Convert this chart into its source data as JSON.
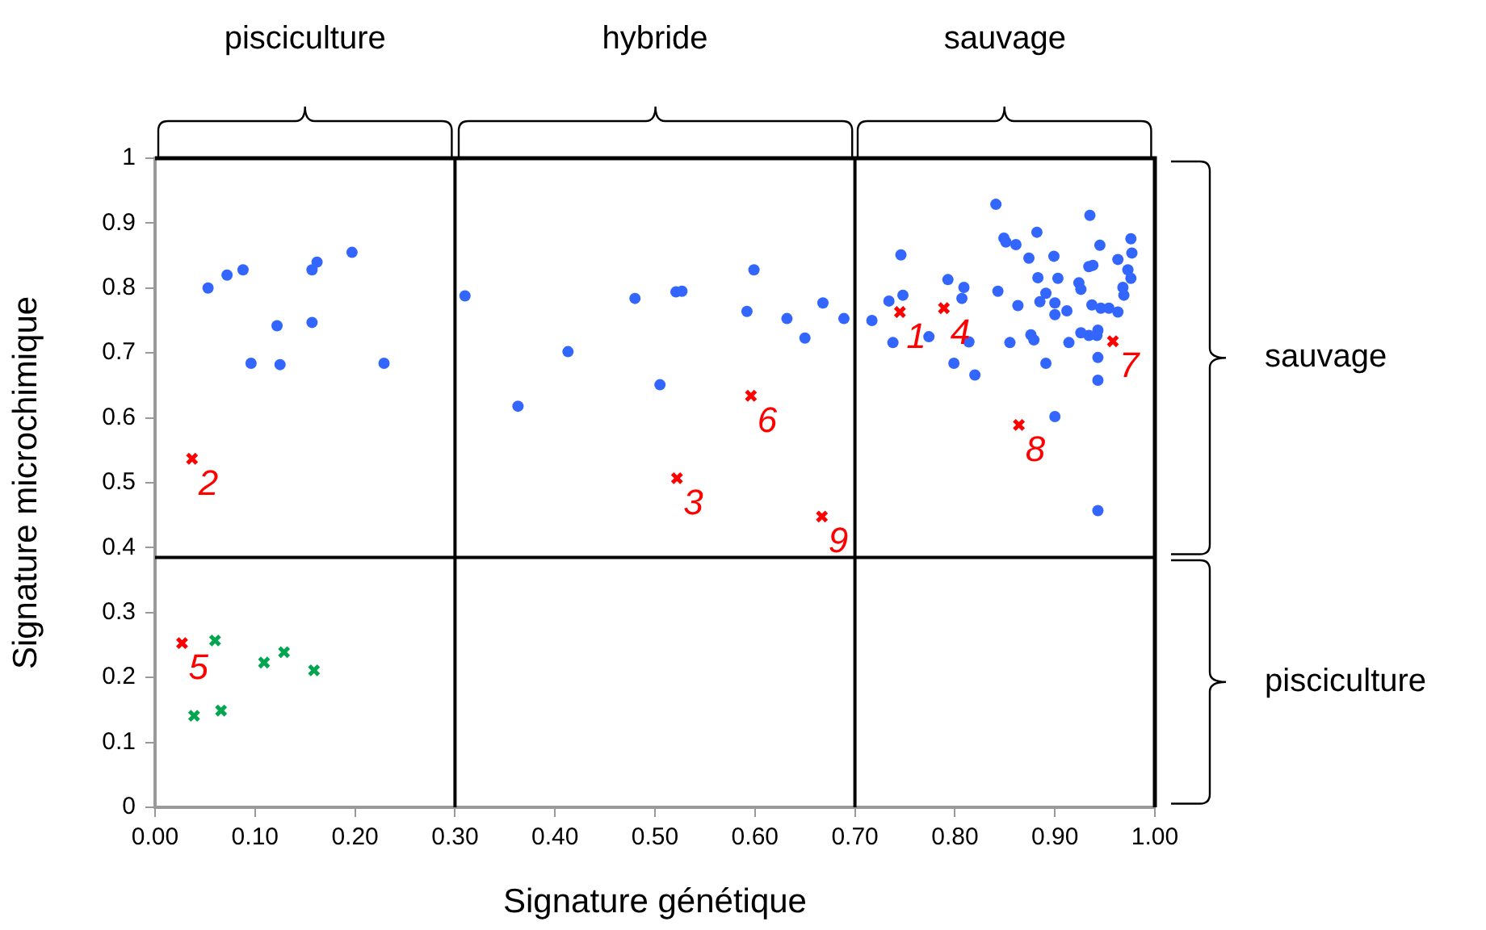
{
  "chart_data": {
    "type": "scatter",
    "xlabel": "Signature génétique",
    "ylabel": "Signature microchimique",
    "xlim": [
      0,
      1
    ],
    "ylim": [
      0,
      1
    ],
    "xticks": [
      {
        "value": 0,
        "label": "0.00"
      },
      {
        "value": 0.1,
        "label": "0.10"
      },
      {
        "value": 0.2,
        "label": "0.20"
      },
      {
        "value": 0.3,
        "label": "0.30"
      },
      {
        "value": 0.4,
        "label": "0.40"
      },
      {
        "value": 0.5,
        "label": "0.50"
      },
      {
        "value": 0.6,
        "label": "0.60"
      },
      {
        "value": 0.7,
        "label": "0.70"
      },
      {
        "value": 0.8,
        "label": "0.80"
      },
      {
        "value": 0.9,
        "label": "0.90"
      },
      {
        "value": 1,
        "label": "1.00"
      }
    ],
    "yticks": [
      0,
      0.1,
      0.2,
      0.3,
      0.4,
      0.5,
      0.6,
      0.7,
      0.8,
      0.9,
      1
    ],
    "grid": false,
    "legend": false,
    "series": [
      {
        "color": "#3366ff",
        "marker": "circle",
        "x": [
          0.053,
          0.072,
          0.088,
          0.157,
          0.162,
          0.197,
          0.122,
          0.157,
          0.096,
          0.125,
          0.229,
          0.31,
          0.363,
          0.413,
          0.48,
          0.505,
          0.521,
          0.527,
          0.592,
          0.599,
          0.632,
          0.65,
          0.668,
          0.689,
          0.717,
          0.734,
          0.748,
          0.746,
          0.738,
          0.774,
          0.793,
          0.809,
          0.807,
          0.814,
          0.799,
          0.82,
          0.841,
          0.849,
          0.851,
          0.861,
          0.882,
          0.874,
          0.899,
          0.843,
          0.863,
          0.883,
          0.903,
          0.891,
          0.885,
          0.9,
          0.9,
          0.912,
          0.855,
          0.876,
          0.879,
          0.891,
          0.914,
          0.9,
          0.924,
          0.926,
          0.935,
          0.945,
          0.934,
          0.938,
          0.963,
          0.976,
          0.977,
          0.973,
          0.976,
          0.968,
          0.969,
          0.937,
          0.946,
          0.954,
          0.963,
          0.926,
          0.934,
          0.942,
          0.943,
          0.943,
          0.943,
          0.943
        ],
        "values": [
          0.8,
          0.82,
          0.828,
          0.828,
          0.84,
          0.855,
          0.742,
          0.747,
          0.684,
          0.682,
          0.684,
          0.788,
          0.618,
          0.702,
          0.784,
          0.651,
          0.794,
          0.795,
          0.764,
          0.828,
          0.753,
          0.723,
          0.777,
          0.753,
          0.75,
          0.78,
          0.789,
          0.851,
          0.716,
          0.725,
          0.813,
          0.801,
          0.784,
          0.717,
          0.684,
          0.666,
          0.929,
          0.877,
          0.871,
          0.867,
          0.886,
          0.846,
          0.849,
          0.795,
          0.773,
          0.816,
          0.815,
          0.792,
          0.779,
          0.777,
          0.759,
          0.765,
          0.716,
          0.728,
          0.72,
          0.684,
          0.716,
          0.602,
          0.808,
          0.798,
          0.912,
          0.866,
          0.833,
          0.835,
          0.844,
          0.876,
          0.854,
          0.828,
          0.815,
          0.801,
          0.789,
          0.774,
          0.769,
          0.769,
          0.763,
          0.731,
          0.727,
          0.727,
          0.735,
          0.693,
          0.658,
          0.457
        ]
      },
      {
        "color": "#00a550",
        "marker": "cross",
        "x": [
          0.06,
          0.109,
          0.129,
          0.159,
          0.039,
          0.066
        ],
        "values": [
          0.257,
          0.223,
          0.239,
          0.211,
          0.141,
          0.149
        ]
      },
      {
        "color": "#ff0000",
        "marker": "cross",
        "x": [
          0.745,
          0.037,
          0.522,
          0.789,
          0.027,
          0.596,
          0.958,
          0.864,
          0.667
        ],
        "values": [
          0.763,
          0.537,
          0.507,
          0.769,
          0.253,
          0.634,
          0.718,
          0.589,
          0.448
        ]
      }
    ],
    "annotations": [
      {
        "text": "1",
        "x": 0.745,
        "y": 0.763
      },
      {
        "text": "2",
        "x": 0.037,
        "y": 0.537
      },
      {
        "text": "3",
        "x": 0.522,
        "y": 0.507
      },
      {
        "text": "4",
        "x": 0.789,
        "y": 0.769
      },
      {
        "text": "5",
        "x": 0.027,
        "y": 0.253
      },
      {
        "text": "6",
        "x": 0.596,
        "y": 0.634
      },
      {
        "text": "7",
        "x": 0.958,
        "y": 0.718
      },
      {
        "text": "8",
        "x": 0.864,
        "y": 0.589
      },
      {
        "text": "9",
        "x": 0.667,
        "y": 0.448
      },
      "pisciculture",
      "hybride",
      "sauvage",
      "sauvage",
      "pisciculture"
    ],
    "ref_lines": [
      {
        "axis": "x",
        "value": 0.3,
        "color": "#000000"
      },
      {
        "axis": "x",
        "value": 0.7,
        "color": "#000000"
      },
      {
        "axis": "y",
        "value": 0.385,
        "color": "#000000"
      }
    ]
  }
}
